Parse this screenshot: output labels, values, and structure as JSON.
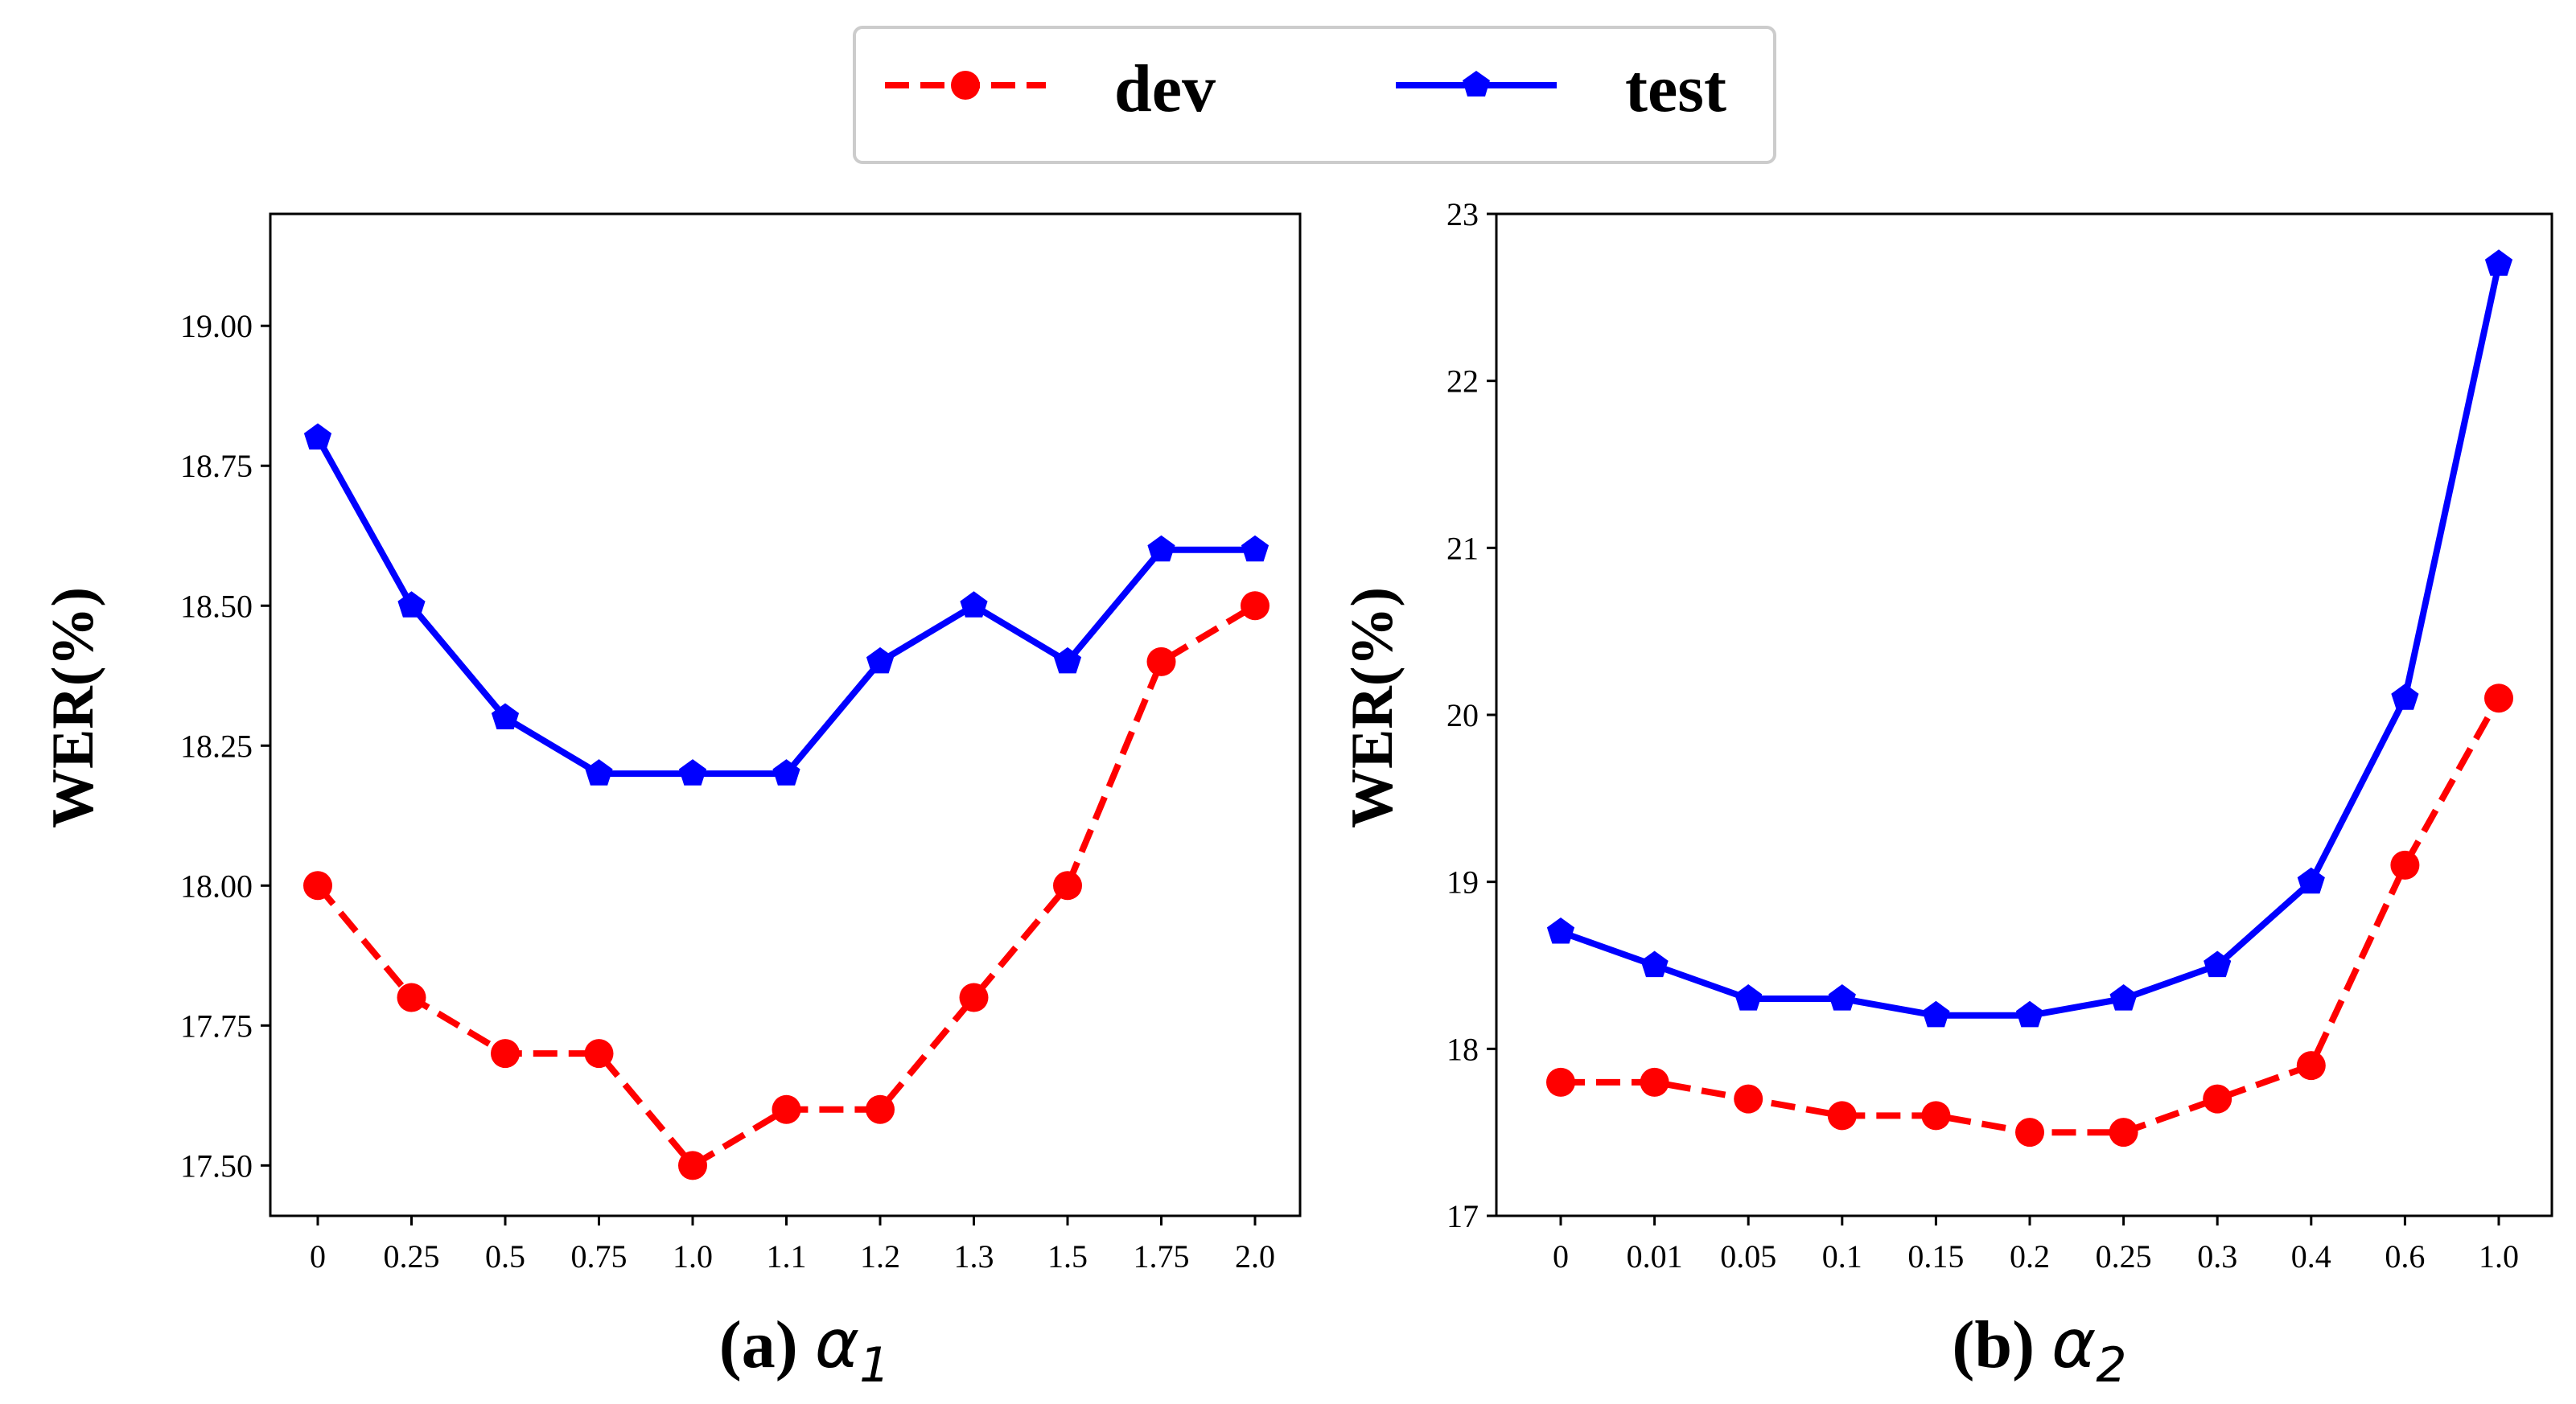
{
  "legend": {
    "items": [
      {
        "label": "dev",
        "color": "#ff0000",
        "marker": "circle",
        "line": "dashed"
      },
      {
        "label": "test",
        "color": "#0000ff",
        "marker": "pentagon",
        "line": "solid"
      }
    ]
  },
  "chart_data": [
    {
      "type": "line",
      "title": "(a) α1",
      "caption_prefix": "(a) ",
      "caption_symbol": "α",
      "caption_sub": "1",
      "xlabel": "",
      "ylabel": "WER(%)",
      "categories": [
        "0",
        "0.25",
        "0.5",
        "0.75",
        "1.0",
        "1.1",
        "1.2",
        "1.3",
        "1.5",
        "1.75",
        "2.0"
      ],
      "ylim": [
        17.41,
        19.2
      ],
      "yticks": [
        17.5,
        17.75,
        18.0,
        18.25,
        18.5,
        18.75,
        19.0
      ],
      "ytick_labels": [
        "17.50",
        "17.75",
        "18.00",
        "18.25",
        "18.50",
        "18.75",
        "19.00"
      ],
      "grid": false,
      "series": [
        {
          "name": "dev",
          "values": [
            18.0,
            17.8,
            17.7,
            17.7,
            17.5,
            17.6,
            17.6,
            17.8,
            18.0,
            18.4,
            18.5
          ]
        },
        {
          "name": "test",
          "values": [
            18.8,
            18.5,
            18.3,
            18.2,
            18.2,
            18.2,
            18.4,
            18.5,
            18.4,
            18.6,
            18.6
          ]
        }
      ]
    },
    {
      "type": "line",
      "title": "(b) α2",
      "caption_prefix": "(b) ",
      "caption_symbol": "α",
      "caption_sub": "2",
      "xlabel": "",
      "ylabel": "WER(%)",
      "categories": [
        "0",
        "0.01",
        "0.05",
        "0.1",
        "0.15",
        "0.2",
        "0.25",
        "0.3",
        "0.4",
        "0.6",
        "1.0"
      ],
      "ylim": [
        17,
        23
      ],
      "yticks": [
        17,
        18,
        19,
        20,
        21,
        22,
        23
      ],
      "ytick_labels": [
        "17",
        "18",
        "19",
        "20",
        "21",
        "22",
        "23"
      ],
      "grid": false,
      "series": [
        {
          "name": "dev",
          "values": [
            17.8,
            17.8,
            17.7,
            17.6,
            17.6,
            17.5,
            17.5,
            17.7,
            17.9,
            19.1,
            20.1
          ]
        },
        {
          "name": "test",
          "values": [
            18.7,
            18.5,
            18.3,
            18.3,
            18.2,
            18.2,
            18.3,
            18.5,
            19.0,
            20.1,
            22.7
          ]
        }
      ]
    }
  ]
}
